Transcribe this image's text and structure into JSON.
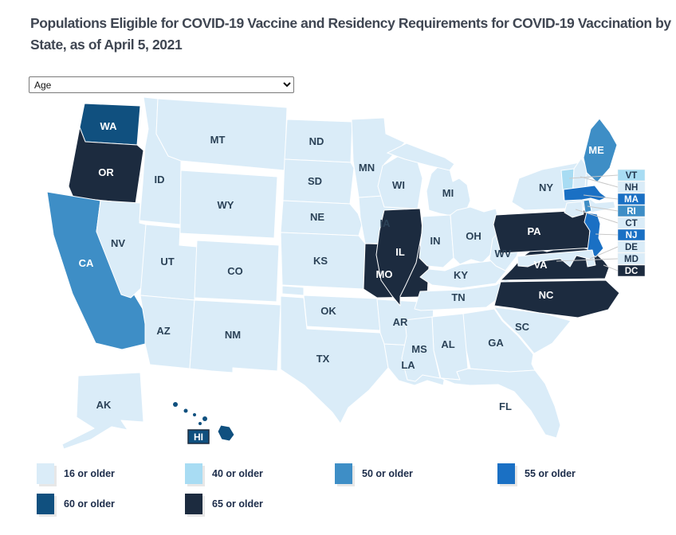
{
  "title": "Populations Eligible for COVID-19 Vaccine and Residency Requirements for COVID-19 Vaccination by State, as of April 5, 2021",
  "dropdown": {
    "value": "Age"
  },
  "colors": {
    "c16": "#DAECF8",
    "c40": "#A8DCF3",
    "c50": "#3E8EC6",
    "c55": "#1A70C4",
    "c60": "#10507F",
    "c65": "#1C2B3F"
  },
  "legend": [
    {
      "label": "16 or older",
      "category": "c16"
    },
    {
      "label": "40 or older",
      "category": "c40"
    },
    {
      "label": "50 or older",
      "category": "c50"
    },
    {
      "label": "55 or older",
      "category": "c55"
    },
    {
      "label": "60 or older",
      "category": "c60"
    },
    {
      "label": "65 or older",
      "category": "c65"
    }
  ],
  "chart_data": {
    "type": "choropleth-map",
    "title": "Populations Eligible for COVID-19 Vaccine and Residency Requirements for COVID-19 Vaccination by State, as of April 5, 2021",
    "filter_selected": "Age",
    "categories": [
      "16 or older",
      "40 or older",
      "50 or older",
      "55 or older",
      "60 or older",
      "65 or older"
    ],
    "states": [
      {
        "abbr": "AK",
        "value": "16 or older"
      },
      {
        "abbr": "AL",
        "value": "16 or older"
      },
      {
        "abbr": "AR",
        "value": "16 or older"
      },
      {
        "abbr": "AZ",
        "value": "16 or older"
      },
      {
        "abbr": "CA",
        "value": "50 or older"
      },
      {
        "abbr": "CO",
        "value": "16 or older"
      },
      {
        "abbr": "CT",
        "value": "16 or older"
      },
      {
        "abbr": "DC",
        "value": "65 or older"
      },
      {
        "abbr": "DE",
        "value": "16 or older"
      },
      {
        "abbr": "FL",
        "value": "16 or older"
      },
      {
        "abbr": "GA",
        "value": "16 or older"
      },
      {
        "abbr": "HI",
        "value": "60 or older"
      },
      {
        "abbr": "IA",
        "value": "16 or older"
      },
      {
        "abbr": "ID",
        "value": "16 or older"
      },
      {
        "abbr": "IL",
        "value": "65 or older"
      },
      {
        "abbr": "IN",
        "value": "16 or older"
      },
      {
        "abbr": "KS",
        "value": "16 or older"
      },
      {
        "abbr": "KY",
        "value": "16 or older"
      },
      {
        "abbr": "LA",
        "value": "16 or older"
      },
      {
        "abbr": "MA",
        "value": "55 or older"
      },
      {
        "abbr": "MD",
        "value": "16 or older"
      },
      {
        "abbr": "ME",
        "value": "50 or older"
      },
      {
        "abbr": "MI",
        "value": "16 or older"
      },
      {
        "abbr": "MN",
        "value": "16 or older"
      },
      {
        "abbr": "MO",
        "value": "65 or older"
      },
      {
        "abbr": "MS",
        "value": "16 or older"
      },
      {
        "abbr": "MT",
        "value": "16 or older"
      },
      {
        "abbr": "NC",
        "value": "65 or older"
      },
      {
        "abbr": "ND",
        "value": "16 or older"
      },
      {
        "abbr": "NE",
        "value": "16 or older"
      },
      {
        "abbr": "NH",
        "value": "16 or older"
      },
      {
        "abbr": "NJ",
        "value": "55 or older"
      },
      {
        "abbr": "NM",
        "value": "16 or older"
      },
      {
        "abbr": "NV",
        "value": "16 or older"
      },
      {
        "abbr": "NY",
        "value": "16 or older"
      },
      {
        "abbr": "OH",
        "value": "16 or older"
      },
      {
        "abbr": "OK",
        "value": "16 or older"
      },
      {
        "abbr": "OR",
        "value": "65 or older"
      },
      {
        "abbr": "PA",
        "value": "65 or older"
      },
      {
        "abbr": "RI",
        "value": "50 or older"
      },
      {
        "abbr": "SC",
        "value": "16 or older"
      },
      {
        "abbr": "SD",
        "value": "16 or older"
      },
      {
        "abbr": "TN",
        "value": "16 or older"
      },
      {
        "abbr": "TX",
        "value": "16 or older"
      },
      {
        "abbr": "UT",
        "value": "16 or older"
      },
      {
        "abbr": "VA",
        "value": "65 or older"
      },
      {
        "abbr": "VT",
        "value": "40 or older"
      },
      {
        "abbr": "WA",
        "value": "60 or older"
      },
      {
        "abbr": "WI",
        "value": "16 or older"
      },
      {
        "abbr": "WV",
        "value": "16 or older"
      },
      {
        "abbr": "WY",
        "value": "16 or older"
      }
    ]
  }
}
